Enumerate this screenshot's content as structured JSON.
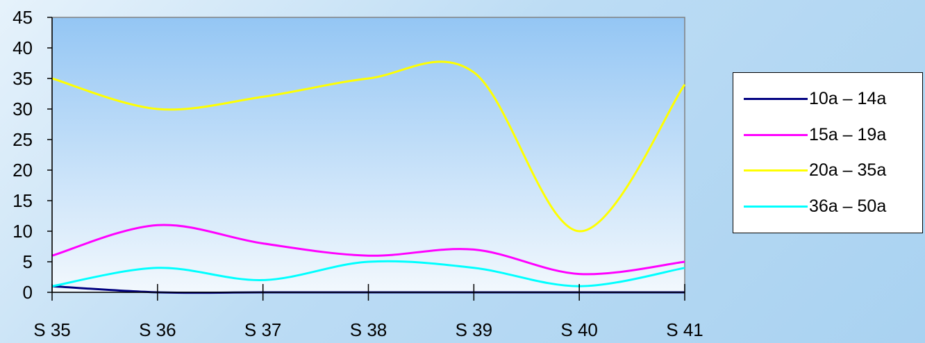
{
  "chart_data": {
    "type": "line",
    "categories": [
      "S 35",
      "S 36",
      "S 37",
      "S 38",
      "S 39",
      "S 40",
      "S 41"
    ],
    "ylim": [
      0,
      45
    ],
    "yticks": [
      "0",
      "5",
      "10",
      "15",
      "20",
      "25",
      "30",
      "35",
      "40",
      "45"
    ],
    "legend_position": "right",
    "series": [
      {
        "name": "10a – 14a",
        "color": "#000080",
        "values": [
          1,
          0,
          0,
          0,
          0,
          0,
          0
        ]
      },
      {
        "name": "15a – 19a",
        "color": "#ff00ff",
        "values": [
          6,
          11,
          8,
          6,
          7,
          3,
          5
        ]
      },
      {
        "name": "20a – 35a",
        "color": "#ffff00",
        "values": [
          35,
          30,
          32,
          35,
          36,
          10,
          34
        ]
      },
      {
        "name": "36a – 50a",
        "color": "#00ffff",
        "values": [
          1,
          4,
          2,
          5,
          4,
          1,
          4
        ]
      }
    ]
  }
}
